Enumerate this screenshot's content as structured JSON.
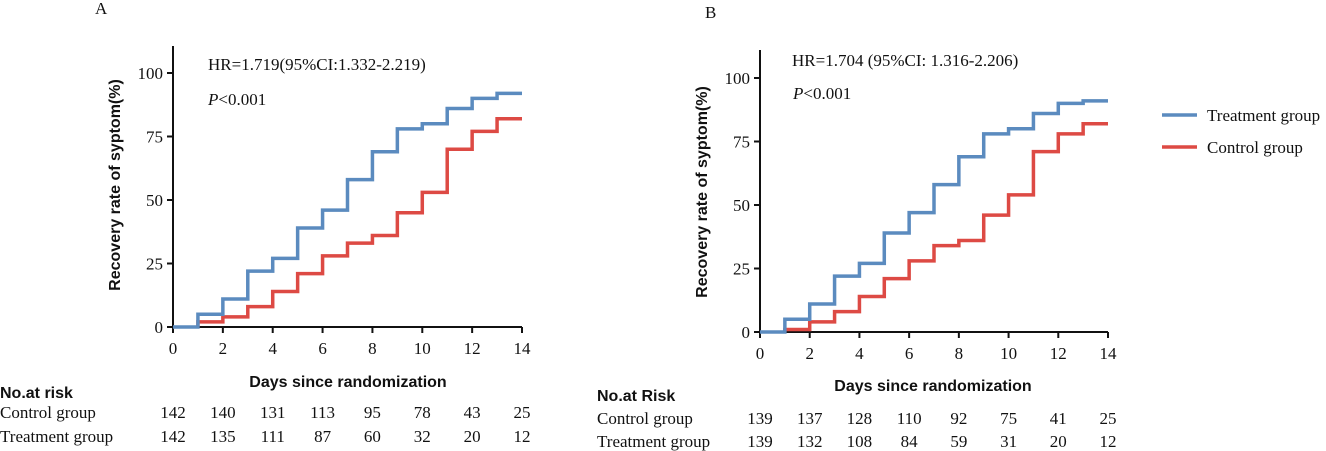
{
  "colors": {
    "treatment": "#5b8bbf",
    "control": "#dd4a44",
    "axis": "#111111"
  },
  "legend": {
    "treatment_label": "Treatment group",
    "control_label": "Control group"
  },
  "chart_data": [
    {
      "panel_label": "A",
      "type": "line",
      "step": true,
      "title": "",
      "xlabel": "Days since randomization",
      "ylabel": "Recovery rate of syptom(%)",
      "xlim": [
        0,
        14
      ],
      "ylim": [
        0,
        110
      ],
      "x_ticks": [
        0,
        2,
        4,
        6,
        8,
        10,
        12,
        14
      ],
      "y_ticks": [
        0,
        25,
        50,
        75,
        100
      ],
      "annotations": {
        "hr": "HR=1.719(95%CI:1.332-2.219)",
        "p_italic": "P",
        "p_rest": "<0.001"
      },
      "series": [
        {
          "name": "Treatment group",
          "color": "#5b8bbf",
          "x": [
            0,
            1,
            2,
            3,
            4,
            5,
            6,
            7,
            8,
            9,
            10,
            11,
            12,
            13,
            14
          ],
          "y": [
            0,
            5,
            11,
            22,
            27,
            39,
            46,
            58,
            69,
            78,
            80,
            86,
            90,
            92,
            92
          ]
        },
        {
          "name": "Control group",
          "color": "#dd4a44",
          "x": [
            1,
            2,
            3,
            4,
            5,
            6,
            7,
            8,
            9,
            10,
            11,
            12,
            13,
            14
          ],
          "y": [
            2,
            4,
            8,
            14,
            21,
            28,
            33,
            36,
            45,
            53,
            70,
            77,
            82,
            82
          ]
        }
      ],
      "risk_table": {
        "title": "No.at risk",
        "rows": [
          {
            "label": "Control group",
            "values": [
              142,
              140,
              131,
              113,
              95,
              78,
              43,
              25
            ]
          },
          {
            "label": "Treatment group",
            "values": [
              142,
              135,
              111,
              87,
              60,
              32,
              20,
              12
            ]
          }
        ]
      }
    },
    {
      "panel_label": "B",
      "type": "line",
      "step": true,
      "title": "",
      "xlabel": "Days since randomization",
      "ylabel": "Recovery rate of syptom(%)",
      "xlim": [
        0,
        14
      ],
      "ylim": [
        0,
        110
      ],
      "x_ticks": [
        0,
        2,
        4,
        6,
        8,
        10,
        12,
        14
      ],
      "y_ticks": [
        0,
        25,
        50,
        75,
        100
      ],
      "annotations": {
        "hr": "HR=1.704 (95%CI: 1.316-2.206)",
        "p_italic": "P",
        "p_rest": "<0.001"
      },
      "series": [
        {
          "name": "Treatment group",
          "color": "#5b8bbf",
          "x": [
            0,
            1,
            2,
            3,
            4,
            5,
            6,
            7,
            8,
            9,
            10,
            11,
            12,
            13,
            14
          ],
          "y": [
            0,
            5,
            11,
            22,
            27,
            39,
            47,
            58,
            69,
            78,
            80,
            86,
            90,
            91,
            91
          ]
        },
        {
          "name": "Control group",
          "color": "#dd4a44",
          "x": [
            1,
            2,
            3,
            4,
            5,
            6,
            7,
            8,
            9,
            10,
            11,
            12,
            13,
            14
          ],
          "y": [
            1,
            4,
            8,
            14,
            21,
            28,
            34,
            36,
            46,
            54,
            71,
            78,
            82,
            82
          ]
        }
      ],
      "risk_table": {
        "title": "No.at Risk",
        "rows": [
          {
            "label": "Control group",
            "values": [
              139,
              137,
              128,
              110,
              92,
              75,
              41,
              25
            ]
          },
          {
            "label": "Treatment group",
            "values": [
              139,
              132,
              108,
              84,
              59,
              31,
              20,
              12
            ]
          }
        ]
      }
    }
  ]
}
